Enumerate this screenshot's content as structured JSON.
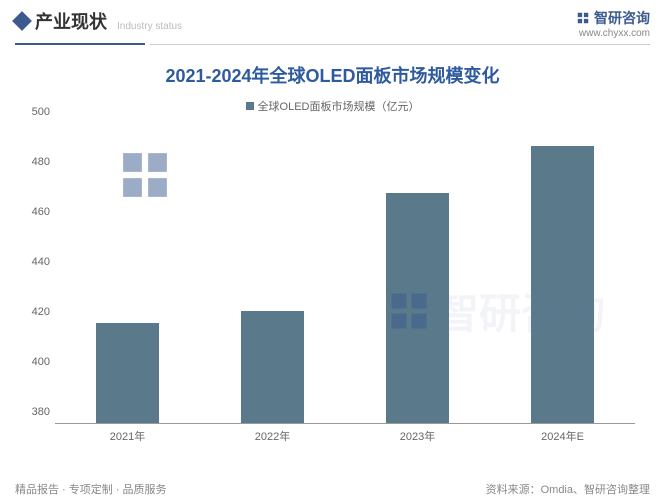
{
  "header": {
    "title": "产业现状",
    "subtitle": "Industry status",
    "brand": "智研咨询",
    "url": "www.chyxx.com"
  },
  "chart": {
    "type": "bar",
    "title": "2021-2024年全球OLED面板市场规模变化",
    "legend_label": "全球OLED面板市场规模（亿元）",
    "categories": [
      "2021年",
      "2022年",
      "2023年",
      "2024年E"
    ],
    "values": [
      420,
      425,
      472,
      491
    ],
    "bar_color": "#5a7a8c",
    "ylim": [
      380,
      500
    ],
    "ytick_step": 20,
    "yticks": [
      380,
      400,
      420,
      440,
      460,
      480,
      500
    ],
    "bar_width_pct": 11,
    "background_color": "#ffffff",
    "axis_color": "#999999",
    "label_color": "#666666",
    "label_fontsize": 11,
    "title_color": "#2e5a9e",
    "title_fontsize": 18
  },
  "footer": {
    "left": "精品报告 · 专项定制 · 品质服务",
    "right": "资料来源：Omdia、智研咨询整理"
  },
  "watermark_text": "智研咨询"
}
